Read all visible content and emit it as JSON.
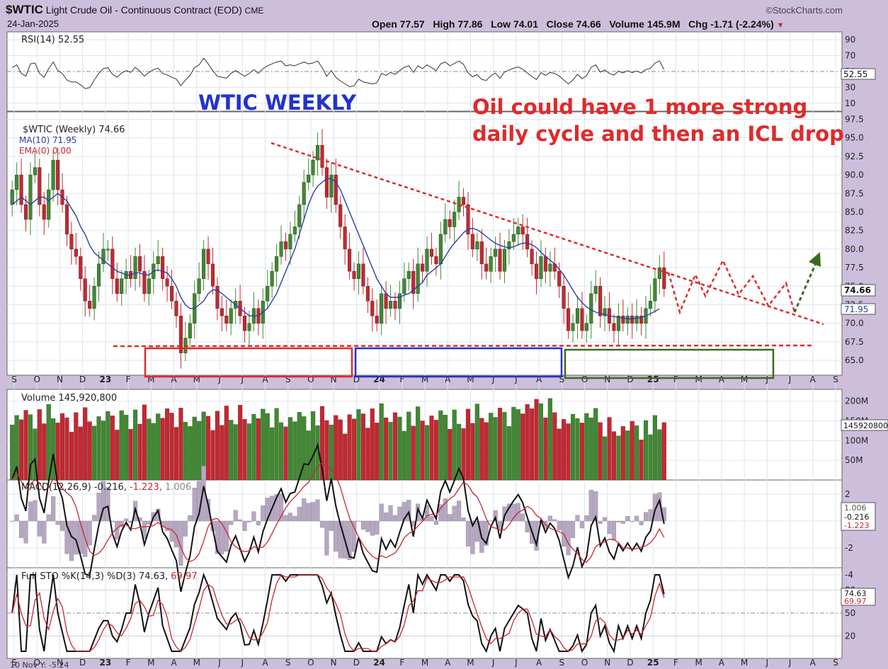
{
  "header": {
    "symbol": "$WTIC",
    "name": "Light Crude Oil - Continuous Contract (EOD)",
    "exchange": "CME",
    "date": "24-Jan-2025",
    "watermark": "©StockCharts.com",
    "ohlc_text": "Open 77.57   High 77.86   Low 74.01   Close 74.66   Volume 145.9M   Chg -1.71 (-2.24%)",
    "down_arrow": "▼"
  },
  "annotations": {
    "weekly_label": "WTIC WEEKLY",
    "note_line1": "Oil could have 1 more strong",
    "note_line2": "daily cycle and then an ICL drop"
  },
  "colors": {
    "up": "#3f8a2f",
    "down": "#c8262f",
    "ma": "#2b3fa6",
    "annotation_red": "#e02a2a",
    "annotation_blue": "#2233cc",
    "projection_green": "#3a6b1f",
    "panel_bg": "#ffffff",
    "frame_bg": "#cdbfdc"
  },
  "panels": {
    "rsi": {
      "legend": "RSI(14) 52.55",
      "value": 52.55,
      "ticks": [
        "90",
        "70",
        "50",
        "30",
        "10"
      ],
      "badge": "52.55"
    },
    "price": {
      "legend_main": "$WTIC (Weekly) 74.66",
      "legend_ma": "MA(10) 71.95",
      "legend_ema": "EMA(0) 0.00",
      "badge_close": "74.66",
      "badge_ma": "71.95",
      "ticks": [
        "97.5",
        "95.0",
        "92.5",
        "90.0",
        "87.5",
        "85.0",
        "82.5",
        "80.0",
        "77.5",
        "75.0",
        "72.5",
        "70.0",
        "67.5",
        "65.0"
      ]
    },
    "volume": {
      "legend": "Volume 145,920,800",
      "ticks": [
        "200M",
        "150M",
        "100M",
        "50M"
      ],
      "badge": "145920800"
    },
    "macd": {
      "legend_prefix": "MACD(12,26,9) -0.216,",
      "legend_signal": "-1.223,",
      "legend_hist": "1.006",
      "ticks": [
        "2",
        "0",
        "-2",
        "-4"
      ],
      "badges": [
        "1.006",
        "-0.216",
        "-1.223"
      ]
    },
    "sto": {
      "legend_prefix": "Full STO %K(14,3) %D(3) 74.63,",
      "legend_d": "69.97",
      "ticks": [
        "80",
        "50",
        "20"
      ],
      "badges": [
        "74.63",
        "69.97"
      ]
    }
  },
  "x_axis": {
    "labels": [
      "S",
      "O",
      "N",
      "D",
      "23",
      "F",
      "M",
      "A",
      "M",
      "J",
      "J",
      "A",
      "S",
      "O",
      "N",
      "D",
      "24",
      "F",
      "M",
      "A",
      "M",
      "J",
      "J",
      "A",
      "S",
      "O",
      "N",
      "D",
      "25",
      "F",
      "M",
      "A",
      "M",
      "J",
      "J",
      "A",
      "S"
    ],
    "bottom_note": "10 Nov Y: -5.24"
  },
  "chart_data": {
    "type": "candlestick",
    "title": "$WTIC Light Crude Oil - Continuous Contract (EOD) CME",
    "timeframe": "Weekly",
    "x_range": [
      "2022-09",
      "2025-09"
    ],
    "price_range": [
      63,
      98.5
    ],
    "close": 74.66,
    "ma10": 71.95,
    "weekly_closes": [
      88,
      90,
      86,
      84,
      90,
      91,
      86,
      84,
      88,
      92,
      88,
      86,
      82,
      80,
      79,
      76,
      73,
      72,
      75,
      78,
      80,
      80,
      76,
      74,
      76,
      77,
      76,
      79,
      77,
      74,
      76,
      78,
      79,
      76,
      75,
      73,
      71,
      66,
      68,
      70,
      74,
      76,
      80,
      78,
      75,
      72,
      71,
      70,
      72,
      73,
      71,
      69,
      70,
      72,
      70,
      73,
      75,
      77,
      79,
      81,
      80,
      82,
      83,
      86,
      89,
      90,
      92,
      94,
      91,
      87,
      90,
      86,
      83,
      80,
      77,
      76,
      78,
      75,
      73,
      71,
      70,
      74,
      72,
      73,
      72,
      74,
      76,
      77,
      74,
      78,
      77,
      80,
      79,
      78,
      82,
      84,
      83,
      85,
      87,
      86,
      82,
      80,
      81,
      78,
      77,
      79,
      80,
      77,
      80,
      81,
      82,
      83,
      82,
      80,
      78,
      76,
      79,
      77,
      78,
      77,
      75,
      72,
      69,
      70,
      72,
      69,
      70,
      74,
      75,
      71,
      72,
      70,
      69,
      71,
      70,
      71,
      70,
      71,
      70,
      72,
      73,
      76,
      77.5,
      74.66
    ],
    "ma10_series": [
      86,
      86.5,
      87,
      86.5,
      86,
      86.5,
      87,
      87,
      86.5,
      87,
      87.5,
      87,
      86.5,
      85.5,
      84.5,
      83,
      82,
      80.5,
      79.5,
      79,
      78.5,
      78,
      77.5,
      77,
      76.8,
      76.5,
      76.5,
      76.8,
      76.8,
      76.5,
      76.5,
      77,
      77.2,
      77,
      76.8,
      76,
      75,
      73.5,
      72.5,
      72,
      72,
      72.5,
      73,
      74,
      74.5,
      74.5,
      74,
      73.5,
      73,
      72.5,
      72,
      71.5,
      71,
      71,
      71,
      71.5,
      72,
      73,
      74,
      75.5,
      77,
      78.5,
      80,
      82,
      84,
      86,
      87.5,
      88.5,
      89,
      89.5,
      89.5,
      89,
      88,
      86.5,
      85,
      83.5,
      82,
      80.5,
      79,
      77.5,
      76,
      75,
      74,
      73.5,
      73.5,
      73.5,
      73.8,
      74,
      74.5,
      75,
      75.5,
      76.5,
      77,
      77.5,
      78,
      79,
      80,
      80.8,
      81.5,
      82.2,
      82.7,
      82.8,
      82.6,
      82.2,
      81.7,
      81.2,
      80.8,
      80.5,
      80.3,
      80.2,
      80.3,
      80.6,
      80.8,
      80.8,
      80.6,
      80.2,
      79.6,
      79,
      78.5,
      78,
      77.3,
      76.5,
      75.5,
      74.5,
      73.5,
      72.8,
      72.2,
      71.8,
      71.5,
      71.3,
      71.2,
      71,
      70.9,
      70.8,
      70.7,
      70.6,
      70.6,
      70.7,
      70.8,
      71,
      71.3,
      71.6,
      71.95
    ],
    "rsi": {
      "value": 52.55,
      "levels": [
        70,
        50,
        30
      ]
    },
    "volume": {
      "last": 145920800,
      "range_label_max": "200M"
    },
    "macd": {
      "macd": -0.216,
      "signal": -1.223,
      "histogram": 1.006
    },
    "stochastic": {
      "k": 74.63,
      "d": 69.97,
      "levels": [
        80,
        50,
        20
      ]
    },
    "trendline": {
      "from": [
        92.5,
        "2023-07"
      ],
      "to": [
        70.5,
        "2025-09"
      ],
      "style": "red dashed"
    },
    "support_line": {
      "value": 66.5,
      "style": "red dashed"
    },
    "cycle_boxes": [
      {
        "color": "red",
        "from": "2023-03",
        "to": "2023-12"
      },
      {
        "color": "blue",
        "from": "2023-12",
        "to": "2024-09"
      },
      {
        "color": "green",
        "from": "2024-09",
        "to": "2025-06"
      }
    ]
  }
}
